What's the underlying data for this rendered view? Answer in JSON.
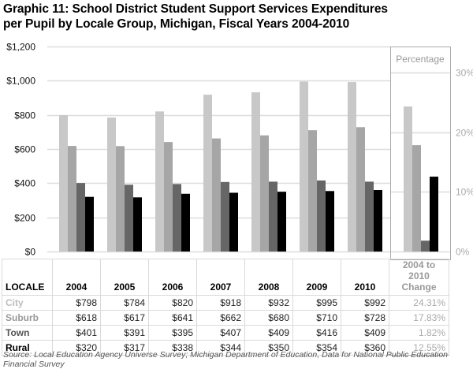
{
  "chart_data": {
    "type": "bar",
    "title": "Graphic 11: School District Student Support Services Expenditures per Pupil by Locale Group, Michigan, Fiscal Years 2004-2010",
    "title_lines": [
      "Graphic 11: School District Student Support Services Expenditures",
      "per Pupil by Locale Group, Michigan, Fiscal Years 2004-2010"
    ],
    "categories": [
      "2004",
      "2005",
      "2006",
      "2007",
      "2008",
      "2009",
      "2010"
    ],
    "series": [
      {
        "name": "City",
        "color": "#c8c8c8",
        "label_color": "#bdbdbd",
        "values": [
          798,
          784,
          820,
          918,
          932,
          995,
          992
        ],
        "display": [
          "$798",
          "$784",
          "$820",
          "$918",
          "$932",
          "$995",
          "$992"
        ],
        "change_pct": 24.31,
        "change_display": "24.31%"
      },
      {
        "name": "Suburb",
        "color": "#a6a6a6",
        "label_color": "#9a9a9a",
        "values": [
          618,
          617,
          641,
          662,
          680,
          710,
          728
        ],
        "display": [
          "$618",
          "$617",
          "$641",
          "$662",
          "$680",
          "$710",
          "$728"
        ],
        "change_pct": 17.83,
        "change_display": "17.83%"
      },
      {
        "name": "Town",
        "color": "#666666",
        "label_color": "#555555",
        "values": [
          401,
          391,
          395,
          407,
          409,
          416,
          409
        ],
        "display": [
          "$401",
          "$391",
          "$395",
          "$407",
          "$409",
          "$416",
          "$409"
        ],
        "change_pct": 1.82,
        "change_display": "1.82%"
      },
      {
        "name": "Rural",
        "color": "#000000",
        "label_color": "#000000",
        "values": [
          320,
          317,
          338,
          344,
          350,
          354,
          360
        ],
        "display": [
          "$320",
          "$317",
          "$338",
          "$344",
          "$350",
          "$354",
          "$360"
        ],
        "change_pct": 12.55,
        "change_display": "12.55%"
      }
    ],
    "xlabel": "",
    "ylabel": "",
    "ylim": [
      0,
      1200
    ],
    "yticks": [
      0,
      200,
      400,
      600,
      800,
      1000,
      1200
    ],
    "ytick_labels": [
      "$0",
      "$200",
      "$400",
      "$600",
      "$800",
      "$1,000",
      "$1,200"
    ],
    "secondary_panel": {
      "label": "Percentage",
      "ylim": [
        0,
        30
      ],
      "yticks": [
        0,
        10,
        20,
        30
      ],
      "ytick_labels": [
        "0%",
        "10%",
        "20%",
        "30%"
      ]
    },
    "grid": true,
    "legend": "table-below"
  },
  "table": {
    "locale_header": "LOCALE",
    "change_header_line1": "2004 to 2010",
    "change_header_line2": "Change"
  },
  "source": "Source: Local Education Agency Universe Survey; Michigan Department of Education, Data for National Public Education Financial Survey"
}
